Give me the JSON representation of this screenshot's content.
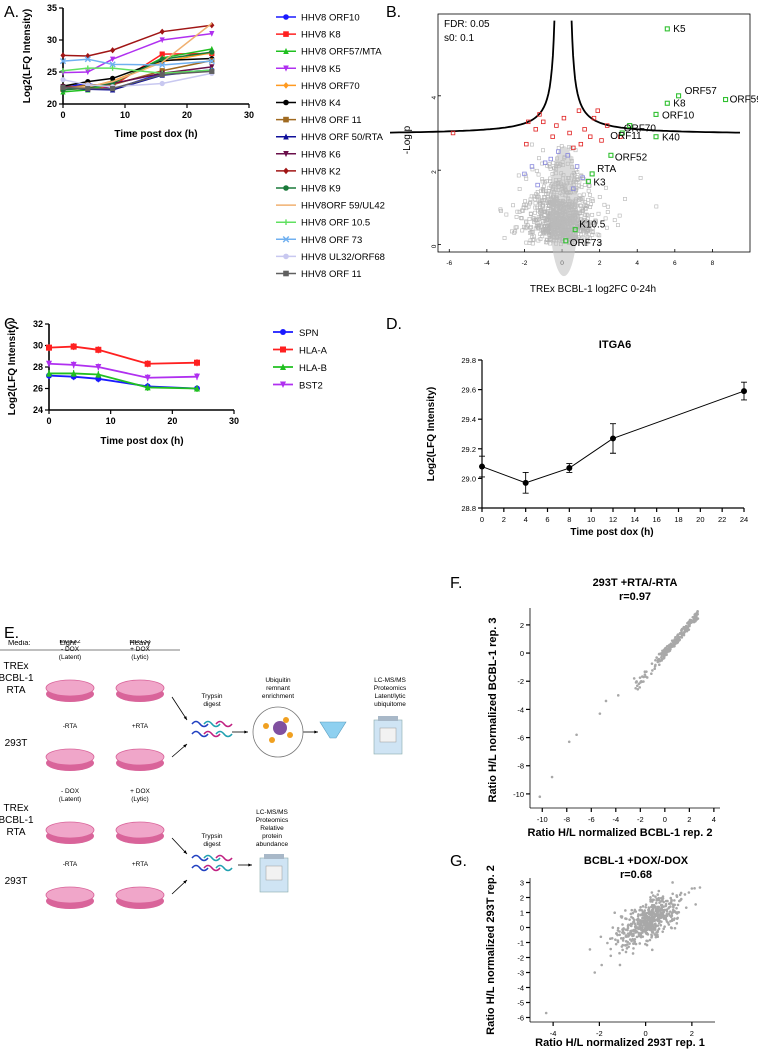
{
  "panel_labels": {
    "a": "A.",
    "b": "B.",
    "c": "C.",
    "d": "D.",
    "e": "E.",
    "f": "F.",
    "g": "G."
  },
  "chart_data": [
    {
      "id": "A",
      "type": "line",
      "xlabel": "Time post dox (h)",
      "ylabel": "Log2(LFQ Intensity)",
      "xlim": [
        0,
        30
      ],
      "ylim": [
        20,
        35
      ],
      "xticks": [
        0,
        10,
        20,
        30
      ],
      "yticks": [
        20,
        25,
        30,
        35
      ],
      "x": [
        0,
        4,
        8,
        16,
        24
      ],
      "series": [
        {
          "name": "HHV8 ORF10",
          "color": "#1a1aff",
          "marker": "circle",
          "values": [
            22.6,
            23.2,
            22.3,
            24.8,
            25.3
          ]
        },
        {
          "name": "HHV8 K8",
          "color": "#ff2020",
          "marker": "square",
          "values": [
            22.3,
            22.4,
            22.8,
            27.8,
            27.9
          ]
        },
        {
          "name": "HHV8 ORF57/MTA",
          "color": "#20c020",
          "marker": "triangle",
          "values": [
            21.9,
            22.2,
            23.2,
            27.2,
            28.6
          ]
        },
        {
          "name": "HHV8 K5",
          "color": "#b030f0",
          "marker": "tri-down",
          "values": [
            24.9,
            25.0,
            27.0,
            30.0,
            31.0
          ]
        },
        {
          "name": "HHV8 ORF70",
          "color": "#ff9a20",
          "marker": "diamond",
          "values": [
            22.8,
            22.6,
            23.6,
            26.6,
            28.0
          ]
        },
        {
          "name": "HHV8 K4",
          "color": "#000000",
          "marker": "circle",
          "values": [
            22.8,
            23.5,
            24.0,
            26.8,
            27.1
          ]
        },
        {
          "name": "HHV8 ORF 11",
          "color": "#a06a20",
          "marker": "square",
          "values": [
            22.4,
            23.0,
            23.0,
            25.2,
            26.8
          ]
        },
        {
          "name": "HHV8 ORF 50/RTA",
          "color": "#10109a",
          "marker": "triangle",
          "values": [
            22.5,
            22.3,
            22.2,
            24.5,
            25.3
          ]
        },
        {
          "name": "HHV8 K6",
          "color": "#6a0f4a",
          "marker": "tri-down",
          "values": [
            22.7,
            22.6,
            23.2,
            24.8,
            25.8
          ]
        },
        {
          "name": "HHV8 K2",
          "color": "#a01515",
          "marker": "diamond",
          "values": [
            27.6,
            27.5,
            28.4,
            31.3,
            32.3
          ]
        },
        {
          "name": "HHV8 K9",
          "color": "#1a7a3a",
          "marker": "circle",
          "values": [
            22.2,
            22.5,
            23.3,
            27.0,
            28.1
          ]
        },
        {
          "name": "HHV8ORF 59/UL42",
          "color": "#f0b070",
          "marker": "none",
          "values": [
            22.5,
            22.7,
            23.5,
            26.5,
            32.6
          ]
        },
        {
          "name": "HHV8 ORF 10.5",
          "color": "#60e060",
          "marker": "plus",
          "values": [
            25.2,
            25.6,
            25.6,
            24.8,
            25.3
          ]
        },
        {
          "name": "HHV8 ORF 73",
          "color": "#70b0f0",
          "marker": "cross",
          "values": [
            26.7,
            27.0,
            26.2,
            26.1,
            26.7
          ]
        },
        {
          "name": "HHV8 UL32/ORF68",
          "color": "#c8c8f0",
          "marker": "circle",
          "values": [
            23.8,
            23.0,
            22.7,
            23.2,
            24.8
          ]
        },
        {
          "name": "HHV8 ORF 11",
          "color": "#606060",
          "marker": "square",
          "values": [
            22.6,
            22.4,
            22.4,
            24.6,
            25.1
          ]
        }
      ]
    },
    {
      "id": "B",
      "type": "scatter",
      "xlabel": "TREx BCBL-1 log2FC 0-24h",
      "ylabel": "-Log p",
      "xlim": [
        -6.6,
        10
      ],
      "ylim": [
        -0.2,
        6.2
      ],
      "xticks": [
        -6,
        -4,
        -2,
        0,
        2,
        4,
        6,
        8
      ],
      "yticks": [
        0,
        2,
        4
      ],
      "annotations": [
        "FDR: 0.05",
        "s0: 0.1"
      ],
      "labeled_points": [
        {
          "label": "K5",
          "x": 5.6,
          "y": 5.8
        },
        {
          "label": "ORF57",
          "x": 6.2,
          "y": 4.0
        },
        {
          "label": "K8",
          "x": 5.6,
          "y": 3.8
        },
        {
          "label": "ORF59",
          "x": 8.7,
          "y": 3.9
        },
        {
          "label": "ORF10",
          "x": 5.0,
          "y": 3.5
        },
        {
          "label": "ORF70",
          "x": 3.6,
          "y": 3.2
        },
        {
          "label": "ORF11",
          "x": 3.2,
          "y": 3.0
        },
        {
          "label": "K40",
          "x": 5.0,
          "y": 2.9
        },
        {
          "label": "ORF52",
          "x": 2.6,
          "y": 2.4
        },
        {
          "label": "RTA",
          "x": 1.6,
          "y": 1.9
        },
        {
          "label": "K3",
          "x": 1.4,
          "y": 1.7
        },
        {
          "label": "K10.5",
          "x": 0.7,
          "y": 0.4
        },
        {
          "label": "ORF73",
          "x": 0.2,
          "y": 0.1
        }
      ]
    },
    {
      "id": "C",
      "type": "line",
      "xlabel": "Time post dox (h)",
      "ylabel": "Log2(LFQ Intensity)",
      "xlim": [
        0,
        30
      ],
      "ylim": [
        24,
        32
      ],
      "xticks": [
        0,
        10,
        20,
        30
      ],
      "yticks": [
        24,
        26,
        28,
        30,
        32
      ],
      "x": [
        0,
        4,
        8,
        16,
        24
      ],
      "series": [
        {
          "name": "SPN",
          "color": "#1a1aff",
          "marker": "circle",
          "values": [
            27.2,
            27.1,
            26.9,
            26.2,
            26.0
          ]
        },
        {
          "name": "HLA-A",
          "color": "#ff2020",
          "marker": "square",
          "values": [
            29.8,
            29.9,
            29.6,
            28.3,
            28.4
          ]
        },
        {
          "name": "HLA-B",
          "color": "#20c020",
          "marker": "triangle",
          "values": [
            27.4,
            27.4,
            27.3,
            26.1,
            26.0
          ]
        },
        {
          "name": "BST2",
          "color": "#b030f0",
          "marker": "tri-down",
          "values": [
            28.3,
            28.2,
            28.0,
            27.0,
            27.1
          ]
        }
      ]
    },
    {
      "id": "D",
      "type": "line",
      "title": "ITGA6",
      "xlabel": "Time post dox (h)",
      "ylabel": "Log2(LFQ Intensity)",
      "xlim": [
        0,
        24
      ],
      "ylim": [
        28.8,
        29.8
      ],
      "xticks": [
        0,
        2,
        4,
        6,
        8,
        10,
        12,
        14,
        16,
        18,
        20,
        22,
        24
      ],
      "yticks": [
        28.8,
        29.0,
        29.2,
        29.4,
        29.6,
        29.8
      ],
      "x": [
        0,
        4,
        8,
        12,
        24
      ],
      "values": [
        29.08,
        28.97,
        29.07,
        29.27,
        29.59
      ],
      "errors": [
        0.07,
        0.07,
        0.03,
        0.1,
        0.06
      ]
    },
    {
      "id": "F",
      "type": "scatter",
      "title": "293T +RTA/-RTA",
      "subtitle": "r=0.97",
      "xlabel": "Ratio H/L normalized BCBL-1 rep. 2",
      "ylabel": "Ratio H/L normalized BCBL-1 rep. 3",
      "xlim": [
        -11,
        4.5
      ],
      "ylim": [
        -11,
        3.2
      ],
      "xticks": [
        -10,
        -8,
        -6,
        -4,
        -2,
        0,
        2,
        4
      ],
      "yticks": [
        -10,
        -8,
        -6,
        -4,
        -2,
        0,
        2
      ]
    },
    {
      "id": "G",
      "type": "scatter",
      "title": "BCBL-1 +DOX/-DOX",
      "subtitle": "r=0.68",
      "xlabel": "Ratio H/L normalized 293T rep. 1",
      "ylabel": "Ratio H/L normalized 293T rep. 2",
      "xlim": [
        -5,
        3
      ],
      "ylim": [
        -6.3,
        3.3
      ],
      "xticks": [
        -4,
        -2,
        0,
        2
      ],
      "yticks": [
        -6,
        -5,
        -4,
        -3,
        -2,
        -1,
        0,
        1,
        2,
        3
      ]
    }
  ],
  "diagram": {
    "media_label": "Media:",
    "light": "Light",
    "heavy": "Heavy",
    "rows": [
      {
        "label": [
          "TREx",
          "BCBL-1",
          "RTA"
        ],
        "light": [
          "MG132",
          "- DOX",
          "(Latent)"
        ],
        "heavy": [
          "MG132",
          "+ DOX",
          "(Lytic)"
        ]
      },
      {
        "label": [
          "293T"
        ],
        "light": [
          "-RTA"
        ],
        "heavy": [
          "+RTA"
        ]
      },
      {
        "label": [
          "TREx",
          "BCBL-1",
          "RTA"
        ],
        "light": [
          "- DOX",
          "(Latent)"
        ],
        "heavy": [
          "+ DOX",
          "(Lytic)"
        ]
      },
      {
        "label": [
          "293T"
        ],
        "light": [
          "-RTA"
        ],
        "heavy": [
          "+RTA"
        ]
      }
    ],
    "trypsin": [
      "Trypsin",
      "digest"
    ],
    "ubiquitin": [
      "Ubiquitin",
      "remnant",
      "enrichment"
    ],
    "ms_top": [
      "LC-MS/MS",
      "Proteomics",
      "Latent/lytic",
      "ubiquitome"
    ],
    "ms_bottom": [
      "LC-MS/MS",
      "Proteomics",
      "Relative",
      "protein",
      "abundance"
    ]
  }
}
